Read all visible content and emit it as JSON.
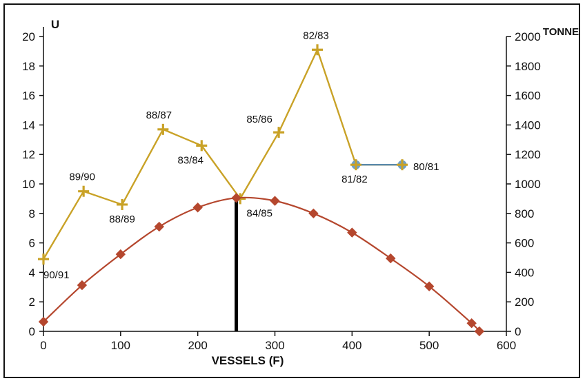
{
  "chart_data": {
    "type": "line",
    "title": "",
    "xlabel": "VESSELS (F)",
    "ylabel_left": "U",
    "ylabel_right": "TONNE",
    "xlim": [
      0,
      600
    ],
    "ylim_left": [
      0,
      20
    ],
    "ylim_right": [
      0,
      2000
    ],
    "x_ticks": [
      0,
      100,
      200,
      300,
      400,
      500,
      600
    ],
    "y_left_ticks": [
      0,
      2,
      4,
      6,
      8,
      10,
      12,
      14,
      16,
      18,
      20
    ],
    "y_right_ticks": [
      0,
      200,
      400,
      600,
      800,
      1000,
      1200,
      1400,
      1600,
      1800,
      2000
    ],
    "grid": false,
    "legend": "none",
    "vertical_marker_x": 250,
    "series": [
      {
        "axis": "left",
        "marker": "plus",
        "color": "#C9A227",
        "points": [
          {
            "x": 0,
            "y": 4.9,
            "label": "90/91"
          },
          {
            "x": 52,
            "y": 9.5,
            "label": "89/90"
          },
          {
            "x": 102,
            "y": 8.6,
            "label": "88/89"
          },
          {
            "x": 155,
            "y": 13.7,
            "label": "88/87"
          },
          {
            "x": 205,
            "y": 12.6,
            "label": "83/84"
          },
          {
            "x": 255,
            "y": 9.0,
            "label": "84/85"
          },
          {
            "x": 305,
            "y": 13.5,
            "label": "85/86"
          },
          {
            "x": 355,
            "y": 19.1,
            "label": "82/83"
          },
          {
            "x": 405,
            "y": 11.3,
            "label": "81/82"
          },
          {
            "x": 465,
            "y": 11.3,
            "label": "80/81"
          }
        ]
      },
      {
        "axis": "right",
        "marker": "diamond",
        "color": "#B5472E",
        "points": [
          {
            "x": 0,
            "y": 65
          },
          {
            "x": 50,
            "y": 313
          },
          {
            "x": 100,
            "y": 523
          },
          {
            "x": 150,
            "y": 710
          },
          {
            "x": 200,
            "y": 840
          },
          {
            "x": 250,
            "y": 905
          },
          {
            "x": 300,
            "y": 885
          },
          {
            "x": 350,
            "y": 800
          },
          {
            "x": 400,
            "y": 670
          },
          {
            "x": 450,
            "y": 495
          },
          {
            "x": 500,
            "y": 305
          },
          {
            "x": 555,
            "y": 55
          },
          {
            "x": 565,
            "y": 0
          }
        ]
      }
    ]
  }
}
